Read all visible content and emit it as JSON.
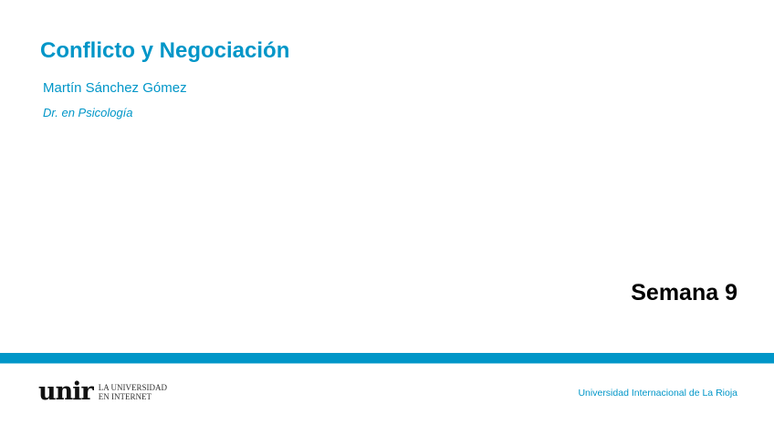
{
  "slide": {
    "title": "Conflicto y Negociación",
    "author": "Martín Sánchez Gómez",
    "degree": "Dr. en Psicología",
    "week": "Semana 9"
  },
  "footer": {
    "logo": {
      "mark": "unir",
      "line1": "LA UNIVERSIDAD",
      "line2": "EN INTERNET"
    },
    "university": "Universidad Internacional de La Rioja"
  },
  "colors": {
    "accent": "#0096c8"
  }
}
